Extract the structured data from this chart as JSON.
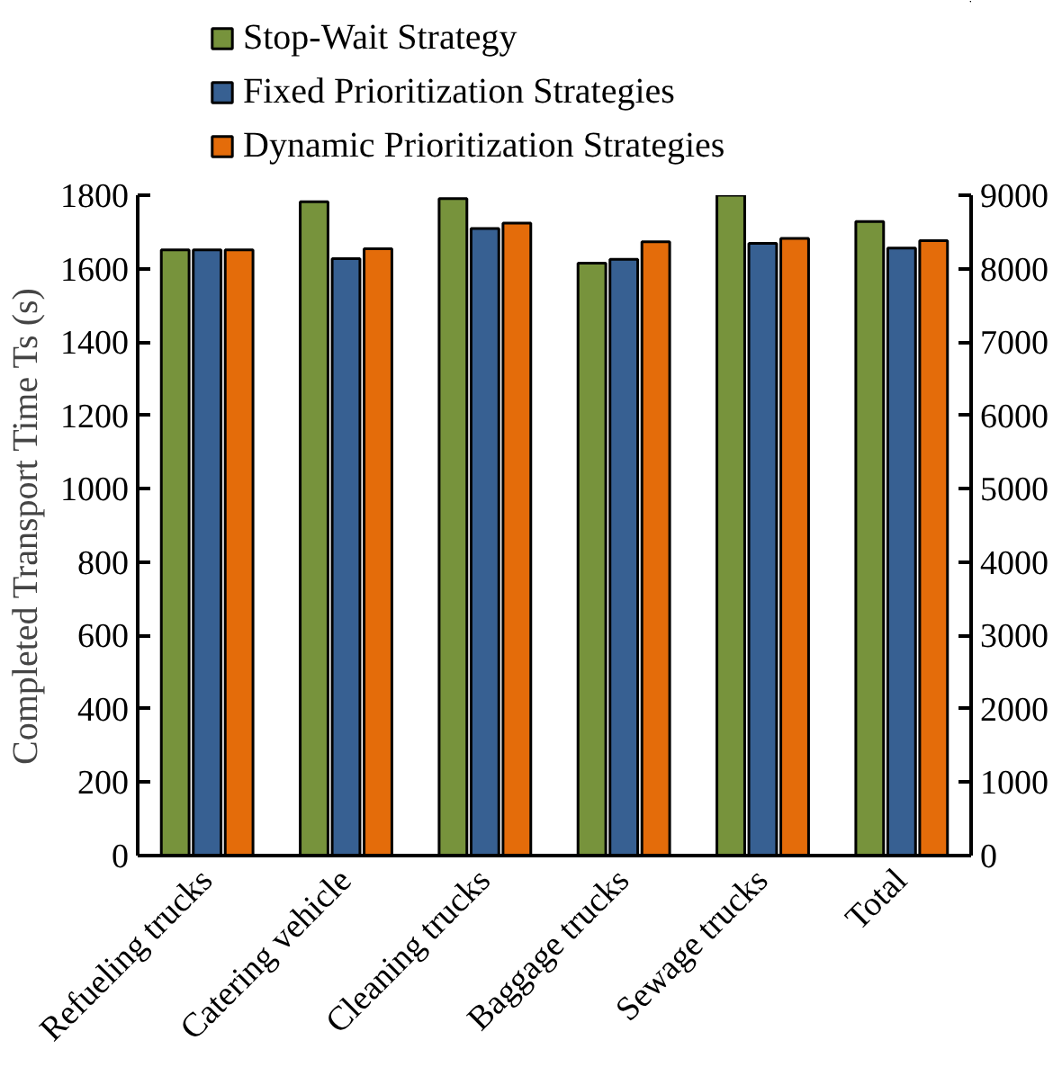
{
  "chart_data": {
    "type": "bar",
    "ylabel": "Completed Transport Time Ts (s)",
    "categories": [
      "Refueling trucks",
      "Catering vehicle",
      "Cleaning trucks",
      "Baggage trucks",
      "Sewage trucks",
      "Total"
    ],
    "series": [
      {
        "name": "Stop-Wait Strategy",
        "color": "#77933c",
        "values": [
          1651,
          1782,
          1791,
          1615,
          1800,
          null
        ]
      },
      {
        "name": "Fixed Prioritization Strategies",
        "color": "#376092",
        "values": [
          1651,
          1627,
          1709,
          1625,
          1669,
          null
        ]
      },
      {
        "name": "Dynamic Prioritization Strategies",
        "color": "#e46c0a",
        "values": [
          1651,
          1654,
          1724,
          1673,
          1682,
          null
        ]
      },
      {
        "color": "#77933c",
        "axis": "y2",
        "values": [
          null,
          null,
          null,
          null,
          null,
          8640
        ]
      },
      {
        "color": "#376092",
        "axis": "y2",
        "values": [
          null,
          null,
          null,
          null,
          null,
          8280
        ]
      },
      {
        "color": "#e46c0a",
        "axis": "y2",
        "values": [
          null,
          null,
          null,
          null,
          null,
          8380
        ]
      }
    ],
    "ylim": [
      0,
      1800
    ],
    "yticks": [
      0,
      200,
      400,
      600,
      800,
      1000,
      1200,
      1400,
      1600,
      1800
    ],
    "y2lim": [
      0,
      9000
    ],
    "y2ticks": [
      0,
      1000,
      2000,
      3000,
      4000,
      5000,
      6000,
      7000,
      8000,
      9000
    ],
    "grid": false,
    "legend": "top"
  }
}
